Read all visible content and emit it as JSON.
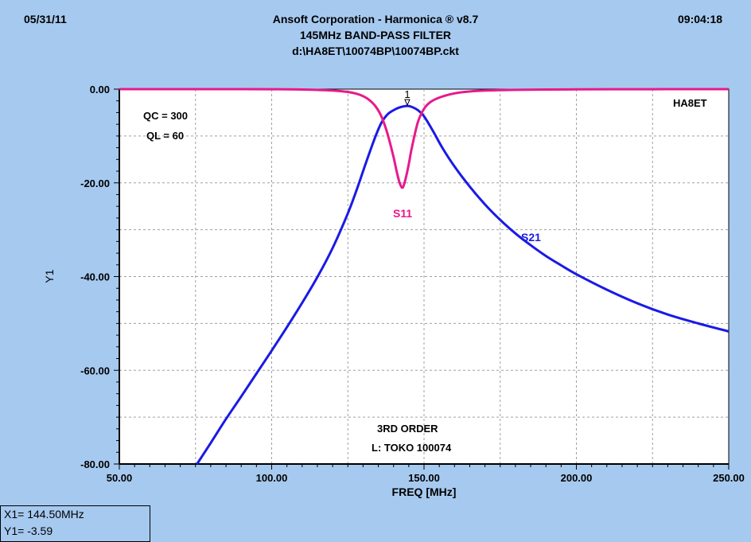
{
  "header": {
    "date": "05/31/11",
    "time": "09:04:18",
    "title": "Ansoft Corporation - Harmonica ® v8.7",
    "subtitle": "145MHz BAND-PASS FILTER",
    "file": "d:\\HA8ET\\10074BP\\10074BP.ckt"
  },
  "readout": {
    "x1": "X1= 144.50MHz",
    "y1": "Y1= -3.59"
  },
  "chart_data": {
    "type": "line",
    "xlabel": "FREQ [MHz]",
    "ylabel": "Y1",
    "xlim": [
      50,
      250
    ],
    "ylim": [
      -80,
      0
    ],
    "xticks": [
      "50.00",
      "100.00",
      "150.00",
      "200.00",
      "250.00"
    ],
    "yticks": [
      "0.00",
      "-20.00",
      "-40.00",
      "-60.00",
      "-80.00"
    ],
    "grid": true,
    "annotations": {
      "qc": "QC = 300",
      "ql": "QL = 60",
      "author": "HA8ET",
      "order": "3RD ORDER",
      "inductor": "L: TOKO 100074",
      "marker": "1"
    },
    "marker": {
      "x": 144.5,
      "y": -3.59
    },
    "series": [
      {
        "name": "S21",
        "color": "#1a1ae6",
        "x": [
          75.5,
          80,
          85,
          90,
          95,
          100,
          105,
          110,
          115,
          120,
          125,
          128,
          131,
          134,
          136,
          138,
          140,
          142,
          144.5,
          146,
          148,
          150,
          153,
          156,
          160,
          165,
          170,
          175,
          180,
          185,
          190,
          195,
          200,
          210,
          220,
          230,
          240,
          250
        ],
        "y": [
          -80,
          -75.5,
          -70.4,
          -65.6,
          -60.7,
          -55.8,
          -50.8,
          -45.6,
          -40.1,
          -33.9,
          -26.5,
          -21.3,
          -15.6,
          -10.2,
          -7.2,
          -5.4,
          -4.5,
          -3.9,
          -3.59,
          -3.8,
          -4.5,
          -5.8,
          -9.0,
          -12.5,
          -16.5,
          -20.8,
          -24.6,
          -27.9,
          -30.8,
          -33.3,
          -35.6,
          -37.6,
          -39.5,
          -42.8,
          -45.7,
          -48.1,
          -50.0,
          -51.7
        ]
      },
      {
        "name": "S11",
        "color": "#e8198c",
        "x": [
          50,
          60,
          70,
          80,
          90,
          100,
          110,
          120,
          125,
          128,
          130,
          132,
          134,
          136,
          138,
          140,
          141,
          142,
          143,
          144,
          145,
          146,
          148,
          150,
          152,
          155,
          160,
          165,
          170,
          180,
          190,
          200,
          210,
          220,
          230,
          240,
          250
        ],
        "y": [
          0,
          0,
          0,
          0,
          0,
          -0.02,
          -0.08,
          -0.3,
          -0.6,
          -1.0,
          -1.5,
          -2.3,
          -3.6,
          -5.8,
          -9.5,
          -14.5,
          -17.5,
          -20.0,
          -21.0,
          -19.0,
          -16.0,
          -12.5,
          -7.0,
          -4.2,
          -2.8,
          -1.8,
          -0.9,
          -0.5,
          -0.3,
          -0.15,
          -0.08,
          -0.05,
          -0.03,
          -0.02,
          -0.01,
          -0.01,
          0
        ]
      }
    ]
  }
}
